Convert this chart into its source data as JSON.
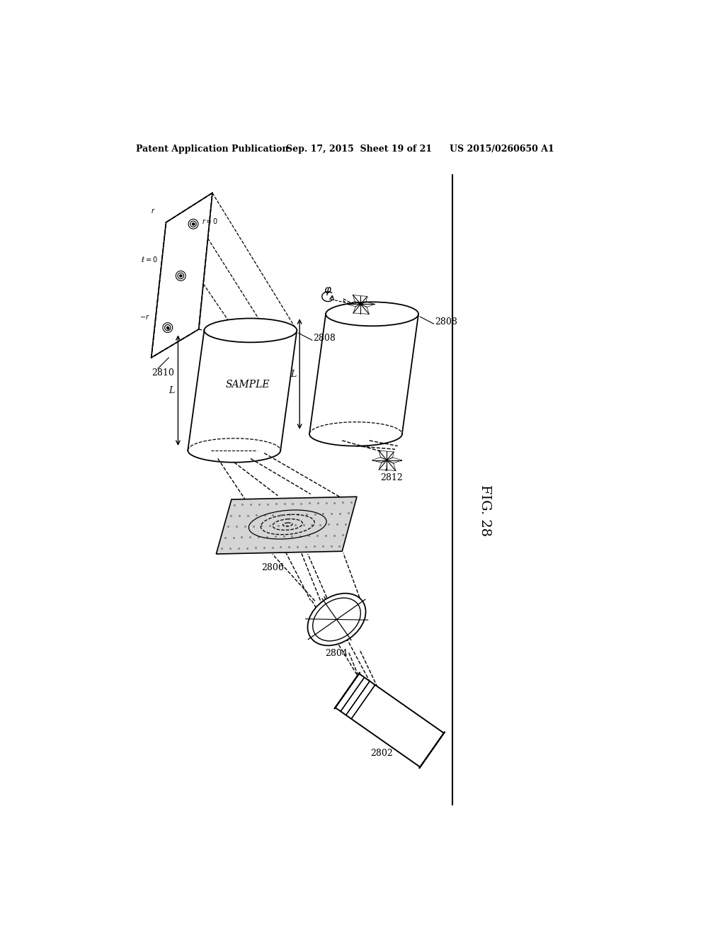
{
  "header_left": "Patent Application Publication",
  "header_center": "Sep. 17, 2015  Sheet 19 of 21",
  "header_right": "US 2015/0260650 A1",
  "fig_label": "FIG. 28",
  "bg_color": "#ffffff"
}
